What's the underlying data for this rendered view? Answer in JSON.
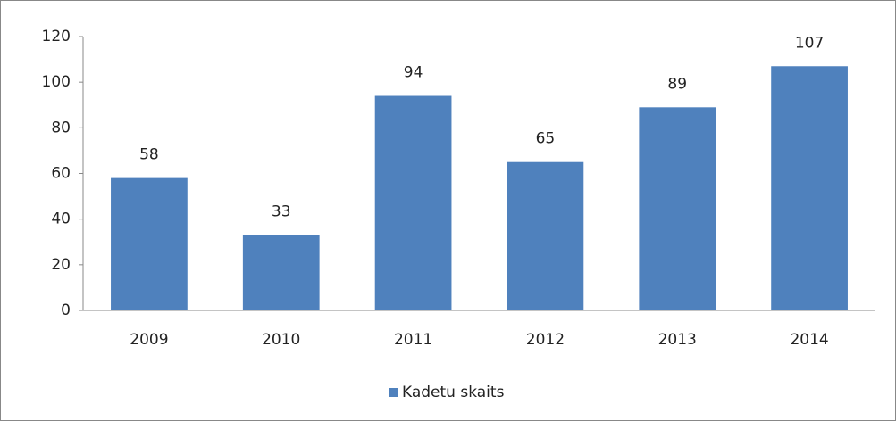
{
  "chart_data": {
    "type": "bar",
    "categories": [
      "2009",
      "2010",
      "2011",
      "2012",
      "2013",
      "2014"
    ],
    "series": [
      {
        "name": "Kadetu skaits",
        "color": "#4f81bd",
        "values": [
          58,
          33,
          94,
          65,
          89,
          107
        ]
      }
    ],
    "ylim": [
      0,
      120
    ],
    "yticks": [
      0,
      20,
      40,
      60,
      80,
      100,
      120
    ],
    "grid": false,
    "legend": "bottom",
    "data_labels": true
  }
}
